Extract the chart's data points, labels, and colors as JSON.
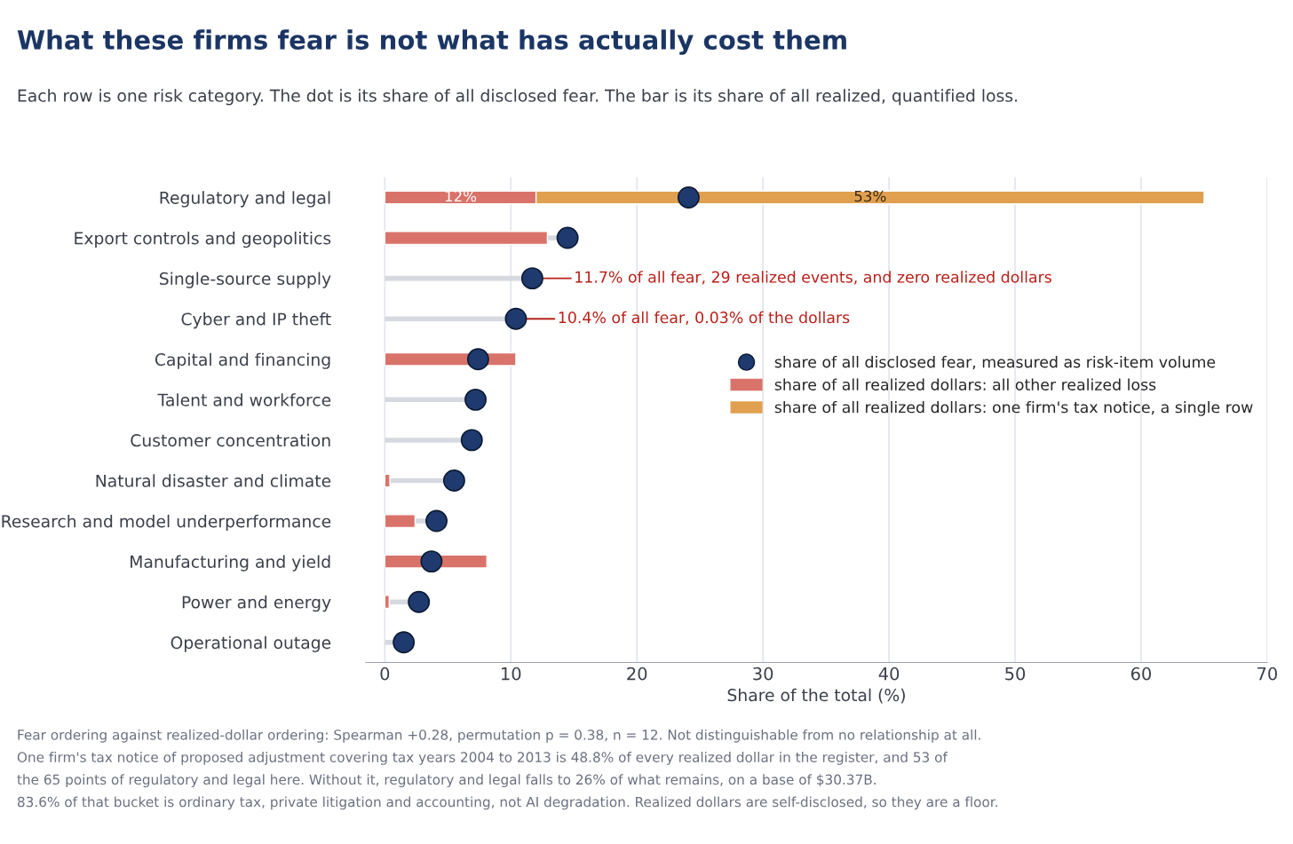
{
  "chart_data": {
    "type": "bar",
    "orientation": "horizontal",
    "stacked": true,
    "title": "What these firms fear is not what has actually cost them",
    "subtitle": "Each row is one risk category. The dot is its share of all disclosed fear. The bar is its share of all realized, quantified loss.",
    "xlabel": "Share of the total (%)",
    "categories": [
      "Regulatory and legal",
      "Export controls and geopolitics",
      "Single-source supply",
      "Cyber and IP theft",
      "Capital and financing",
      "Talent and workforce",
      "Customer concentration",
      "Natural disaster and climate",
      "Research and model underperformance",
      "Manufacturing and yield",
      "Power and energy",
      "Operational outage"
    ],
    "series": [
      {
        "name": "share of all realized dollars: all other realized loss",
        "color": "#d9736a",
        "values": [
          12,
          12.9,
          0,
          null,
          10.4,
          0,
          0,
          0.4,
          2.4,
          8.1,
          0.35,
          0
        ],
        "value_labels": [
          "12%",
          null,
          null,
          null,
          null,
          null,
          null,
          null,
          null,
          null,
          null,
          null
        ]
      },
      {
        "name": "share of all realized dollars: one firm's tax notice, a single row",
        "color": "#e0a050",
        "values": [
          53,
          null,
          null,
          null,
          null,
          null,
          null,
          null,
          null,
          null,
          null,
          null
        ],
        "value_labels": [
          "53%",
          null,
          null,
          null,
          null,
          null,
          null,
          null,
          null,
          null,
          null,
          null
        ]
      },
      {
        "name": "share of all disclosed fear, measured as risk-item volume",
        "type": "scatter",
        "color": "#1f3a6e",
        "values": [
          24.1,
          14.5,
          11.7,
          10.4,
          7.4,
          7.2,
          6.9,
          5.5,
          4.1,
          3.7,
          2.7,
          1.5
        ]
      }
    ],
    "xlim": [
      -1.5,
      70
    ],
    "xticks": [
      0,
      10,
      20,
      30,
      40,
      50,
      60,
      70
    ],
    "grid": "x",
    "legend": "right",
    "annotations": [
      {
        "text": "11.7% of all fear, 29 realized events, and zero realized dollars",
        "x": 11.7,
        "y": "Single-source supply"
      },
      {
        "text": "10.4% of all fear, 0.03% of the dollars",
        "x": 10.4,
        "y": "Cyber and IP theft"
      },
      "Fear ordering against realized-dollar ordering: Spearman +0.28, permutation p = 0.38, n = 12. Not distinguishable from no relationship at all.",
      "One firm's tax notice of proposed adjustment covering tax years 2004 to 2013 is 48.8% of every realized dollar in the register, and 53 of",
      "the 65 points of regulatory and legal here. Without it, regulatory and legal falls to 26% of what remains, on a base of $30.37B.",
      "83.6% of that bucket is ordinary tax, private litigation and accounting, not AI degradation. Realized dollars are self-disclosed, so they are a floor."
    ]
  }
}
